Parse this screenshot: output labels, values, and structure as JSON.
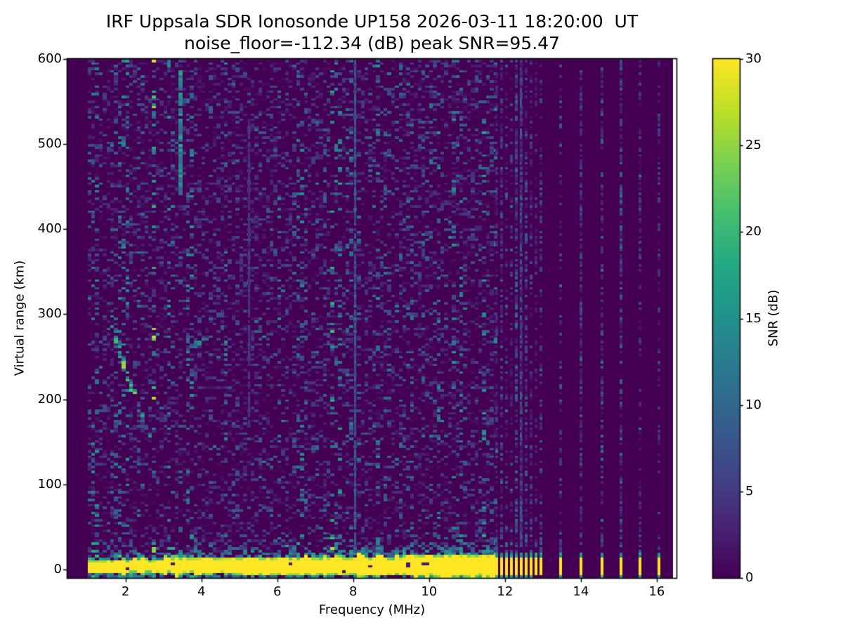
{
  "title": "IRF Uppsala SDR Ionosonde UP158 2026-03-11 18:20:00  UT",
  "subtitle": "noise_floor=-112.34 (dB) peak SNR=95.47",
  "station": "UP158",
  "timestamp_ut": "2026-03-11 18:20:00",
  "chart_data": {
    "type": "heatmap",
    "title": "IRF Uppsala SDR Ionosonde UP158 2026-03-11 18:20:00  UT",
    "subtitle": "noise_floor=-112.34 (dB) peak SNR=95.47",
    "xlabel": "Frequency (MHz)",
    "ylabel": "Virtual range (km)",
    "colorbar_label": "SNR (dB)",
    "colormap": "viridis",
    "xlim": [
      0.47,
      16.52
    ],
    "ylim": [
      -10,
      600
    ],
    "snr_lim": [
      0,
      30
    ],
    "xticks": [
      2,
      4,
      6,
      8,
      10,
      12,
      14,
      16
    ],
    "yticks": [
      0,
      100,
      200,
      300,
      400,
      500,
      600
    ],
    "colorbar_ticks": [
      0,
      5,
      10,
      15,
      20,
      25,
      30
    ],
    "noise_floor_db": -112.34,
    "peak_snr_db": 95.47,
    "sweep": {
      "continuous_mhz": [
        1.0,
        11.75
      ],
      "freq_step_mhz": 0.1,
      "range_step_km": 3,
      "discrete_frequencies_mhz": [
        11.78,
        11.91,
        12.04,
        12.17,
        12.3,
        12.43,
        12.56,
        12.69,
        12.82,
        12.95,
        13.46,
        14.01,
        14.56,
        15.05,
        15.55,
        16.05
      ]
    },
    "ground_return": {
      "center_km": 2.5,
      "halfwidth_km_start": 5,
      "halfwidth_km_end": 11,
      "snr_db": 30,
      "fringe_above_km": 22,
      "underline_km": -8
    },
    "echo_traces": [
      {
        "name": "descending-echo",
        "snr_db": 18,
        "points": [
          [
            1.65,
            297
          ],
          [
            1.78,
            268
          ],
          [
            1.9,
            250
          ],
          [
            2.0,
            236
          ],
          [
            2.1,
            218
          ],
          [
            2.2,
            206
          ]
        ]
      },
      {
        "name": "lower-echo",
        "snr_db": 12,
        "points": [
          [
            2.32,
            193
          ],
          [
            2.45,
            175
          ],
          [
            2.6,
            156
          ]
        ]
      },
      {
        "name": "faint-echo",
        "snr_db": 8,
        "points": [
          [
            2.97,
            188
          ],
          [
            3.02,
            164
          ]
        ]
      },
      {
        "name": "flat-echo",
        "snr_db": 11,
        "points": [
          [
            3.6,
            256
          ],
          [
            3.85,
            262
          ],
          [
            4.12,
            271
          ]
        ]
      },
      {
        "name": "echo-dot",
        "snr_db": 12,
        "points": [
          [
            4.5,
            280
          ],
          [
            4.6,
            281
          ]
        ]
      }
    ],
    "rfi_stripes": [
      {
        "f_mhz": 3.47,
        "range_km": [
          440,
          585
        ],
        "snr_db": 15
      },
      {
        "f_mhz": 5.25,
        "range_km": [
          170,
          525
        ],
        "snr_db": 5
      },
      {
        "f_mhz": 8.05,
        "range_km": [
          20,
          600
        ],
        "snr_db": 8
      },
      {
        "f_mhz": 12.43,
        "range_km": [
          30,
          600
        ],
        "snr_db": 8
      }
    ],
    "viridis_stops": [
      "#440154",
      "#482475",
      "#414487",
      "#355f8d",
      "#2a788e",
      "#21918c",
      "#22a884",
      "#44bf70",
      "#7ad151",
      "#bddf26",
      "#fde725"
    ],
    "background_color": "#ffffff",
    "axis_color": "#000000"
  }
}
